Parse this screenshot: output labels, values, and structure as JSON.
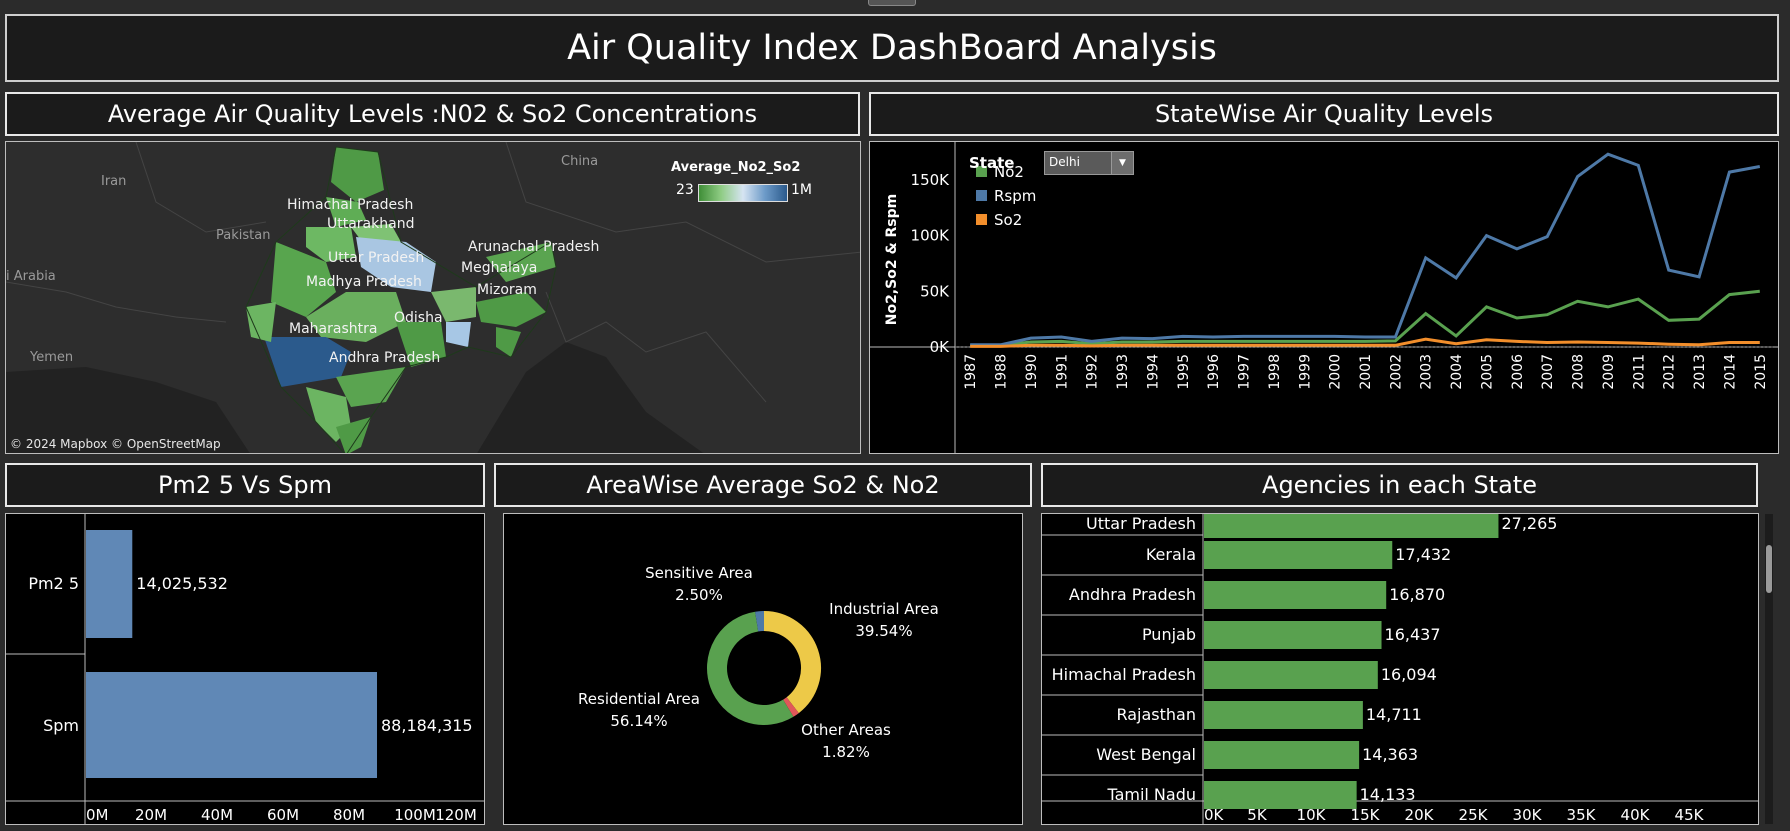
{
  "dashboard": {
    "title": "Air Quality Index DashBoard Analysis"
  },
  "map": {
    "title": "Average Air Quality Levels :N02 & So2 Concentrations",
    "legend_title": "Average_No2_So2",
    "legend_min": "23",
    "legend_max": "1M",
    "attribution": "© 2024 Mapbox © OpenStreetMap",
    "country_labels": [
      "China",
      "Iran",
      "Pakistan",
      "i Arabia",
      "Yemen"
    ],
    "state_labels": [
      "Himachal Pradesh",
      "Uttarakhand",
      "Uttar Pradesh",
      "Madhya Pradesh",
      "Maharashtra",
      "Odisha",
      "Andhra Pradesh",
      "Arunachal Pradesh",
      "Meghalaya",
      "Mizoram"
    ]
  },
  "line_panel": {
    "title": "StateWise Air Quality Levels",
    "filter_label": "State",
    "filter_value": "Delhi"
  },
  "pm_panel": {
    "title": "Pm2 5 Vs Spm"
  },
  "area_panel": {
    "title": "AreaWise Average So2 & No2"
  },
  "agency_panel": {
    "title": "Agencies in each State"
  },
  "chart_data": [
    {
      "type": "line",
      "title": "StateWise Air Quality Levels",
      "ylabel": "No2,So2 & Rspm",
      "legend_title": "State",
      "yticks": [
        "0K",
        "50K",
        "100K",
        "150K"
      ],
      "ylim": [
        0,
        175000
      ],
      "x": [
        "1987",
        "1988",
        "1990",
        "1991",
        "1992",
        "1993",
        "1994",
        "1995",
        "1996",
        "1997",
        "1998",
        "1999",
        "2000",
        "2001",
        "2002",
        "2003",
        "2004",
        "2005",
        "2006",
        "2007",
        "2008",
        "2009",
        "2011",
        "2012",
        "2013",
        "2014",
        "2015"
      ],
      "series": [
        {
          "name": "No2",
          "color": "#59a14f",
          "values": [
            1500,
            1500,
            4500,
            5000,
            3000,
            4500,
            4500,
            5000,
            5000,
            5000,
            5000,
            5000,
            5000,
            5000,
            5500,
            30000,
            10000,
            36000,
            26000,
            29000,
            41000,
            36000,
            43000,
            24000,
            25000,
            47000,
            50000
          ]
        },
        {
          "name": "Rspm",
          "color": "#4e79a7",
          "values": [
            2000,
            2000,
            8000,
            9000,
            5000,
            8000,
            7500,
            9500,
            9000,
            9500,
            9500,
            9500,
            9500,
            9000,
            9000,
            80000,
            62000,
            100000,
            88000,
            99000,
            153000,
            173000,
            163000,
            69000,
            63000,
            157000,
            162000
          ]
        },
        {
          "name": "So2",
          "color": "#f28e2b",
          "values": [
            500,
            500,
            1500,
            1500,
            1000,
            1500,
            1500,
            1500,
            1500,
            1500,
            1500,
            1500,
            1500,
            1500,
            1500,
            7000,
            3000,
            6500,
            5000,
            4000,
            4500,
            4000,
            3500,
            2500,
            2000,
            4000,
            4000
          ]
        }
      ]
    },
    {
      "type": "bar",
      "title": "Pm2 5 Vs Spm",
      "categories": [
        "Pm2 5",
        "Spm"
      ],
      "values": [
        14025532,
        88184315
      ],
      "value_labels": [
        "14,025,532",
        "88,184,315"
      ],
      "xticks": [
        "0M",
        "20M",
        "40M",
        "60M",
        "80M",
        "100M",
        "120M"
      ],
      "xlim": [
        0,
        120000000
      ],
      "color": "#6088b6"
    },
    {
      "type": "pie",
      "title": "AreaWise Average So2 & No2",
      "slices": [
        {
          "name": "Industrial Area",
          "value": 39.54,
          "label": "39.54%",
          "color": "#edc948"
        },
        {
          "name": "Other Areas",
          "value": 1.82,
          "label": "1.82%",
          "color": "#e15759"
        },
        {
          "name": "Residential Area",
          "value": 56.14,
          "label": "56.14%",
          "color": "#59a14f"
        },
        {
          "name": "Sensitive Area",
          "value": 2.5,
          "label": "2.50%",
          "color": "#4e79a7"
        }
      ]
    },
    {
      "type": "bar",
      "title": "Agencies in each State",
      "categories": [
        "Uttar Pradesh",
        "Kerala",
        "Andhra Pradesh",
        "Punjab",
        "Himachal Pradesh",
        "Rajasthan",
        "West Bengal",
        "Tamil Nadu"
      ],
      "values": [
        27265,
        17432,
        16870,
        16437,
        16094,
        14711,
        14363,
        14133
      ],
      "value_labels": [
        "27,265",
        "17,432",
        "16,870",
        "16,437",
        "16,094",
        "14,711",
        "14,363",
        "14,133"
      ],
      "xticks": [
        "0K",
        "5K",
        "10K",
        "15K",
        "20K",
        "25K",
        "30K",
        "35K",
        "40K",
        "45K"
      ],
      "xlim": [
        0,
        50000
      ],
      "color": "#59a14f"
    }
  ]
}
